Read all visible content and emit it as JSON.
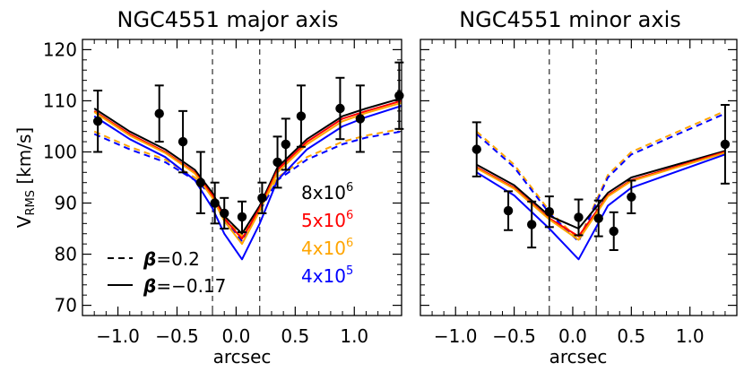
{
  "chart_data": [
    {
      "type": "line",
      "title": "NGC4551 major axis",
      "xlabel": "arcsec",
      "ylabel": "V",
      "ylabel_sub": "RMS",
      "ylabel_unit": " [km/s]",
      "xlim": [
        -1.3,
        1.4
      ],
      "ylim": [
        68,
        122
      ],
      "xticks": [
        -1.0,
        -0.5,
        0.0,
        0.5,
        1.0
      ],
      "xtick_labels": [
        "−1.0",
        "−0.5",
        "0.0",
        "0.5",
        "1.0"
      ],
      "yticks": [
        70,
        80,
        90,
        100,
        110,
        120
      ],
      "ytick_labels": [
        "70",
        "80",
        "90",
        "100",
        "110",
        "120"
      ],
      "vlines": [
        -0.2,
        0.2
      ],
      "data_points": [
        {
          "x": -1.17,
          "y": 106,
          "err": 6
        },
        {
          "x": -0.65,
          "y": 107.5,
          "err": 5.5
        },
        {
          "x": -0.45,
          "y": 102,
          "err": 6
        },
        {
          "x": -0.3,
          "y": 94,
          "err": 6
        },
        {
          "x": -0.18,
          "y": 90,
          "err": 4
        },
        {
          "x": -0.1,
          "y": 88,
          "err": 3
        },
        {
          "x": 0.05,
          "y": 87.3,
          "err": 3
        },
        {
          "x": 0.22,
          "y": 91,
          "err": 3
        },
        {
          "x": 0.35,
          "y": 98,
          "err": 5
        },
        {
          "x": 0.42,
          "y": 101.5,
          "err": 5
        },
        {
          "x": 0.55,
          "y": 107,
          "err": 6
        },
        {
          "x": 0.88,
          "y": 108.5,
          "err": 6
        },
        {
          "x": 1.05,
          "y": 106.5,
          "err": 6.5
        },
        {
          "x": 1.38,
          "y": 111,
          "err": 6.5
        }
      ],
      "x": [
        -1.2,
        -0.9,
        -0.6,
        -0.35,
        -0.2,
        -0.1,
        0.05,
        0.2,
        0.35,
        0.6,
        0.9,
        1.1,
        1.4
      ],
      "series": [
        {
          "name": "β=0.2, 4x10^6",
          "style": "dashed",
          "color": "#FFA500",
          "values": [
            104,
            101,
            98.5,
            95,
            92,
            87.5,
            83.5,
            89,
            95,
            99,
            102,
            103.2,
            104.5
          ]
        },
        {
          "name": "β=0.2, 4x10^5",
          "style": "dashed",
          "color": "#0000FF",
          "values": [
            103.5,
            100.5,
            98,
            94.5,
            91.5,
            87,
            82.5,
            88.5,
            94.5,
            98.5,
            101.5,
            102.8,
            104
          ]
        },
        {
          "name": "β=-0.17, 8x10^6",
          "style": "solid",
          "color": "#000000",
          "values": [
            108.5,
            104,
            100.5,
            96.5,
            92,
            87.5,
            84,
            89.5,
            97,
            102.5,
            107,
            108.5,
            110.5
          ]
        },
        {
          "name": "β=-0.17, 5x10^6",
          "style": "solid",
          "color": "#FF0000",
          "values": [
            108,
            103.5,
            100,
            96,
            91.5,
            87,
            83,
            89,
            96.5,
            102,
            106.5,
            108,
            110
          ]
        },
        {
          "name": "β=-0.17, 4x10^6",
          "style": "solid",
          "color": "#FFA500",
          "values": [
            107.8,
            103.2,
            99.8,
            95.8,
            91,
            86.5,
            82,
            88.5,
            96,
            101.5,
            106,
            107.6,
            109.6
          ]
        },
        {
          "name": "β=-0.17, 4x10^5",
          "style": "solid",
          "color": "#0000FF",
          "values": [
            107,
            102.5,
            99,
            94.5,
            89,
            84,
            79,
            86,
            94.5,
            100.5,
            105,
            106.8,
            109
          ]
        }
      ],
      "legend": [
        {
          "style": "dashed",
          "prefix": "β",
          "text": "=0.2"
        },
        {
          "style": "solid",
          "prefix": "β",
          "text": "=−0.17"
        }
      ],
      "mass_labels": [
        {
          "base": "8x10",
          "exp": "6",
          "color": "#000000"
        },
        {
          "base": "5x10",
          "exp": "6",
          "color": "#FF0000"
        },
        {
          "base": "4x10",
          "exp": "6",
          "color": "#FFA500"
        },
        {
          "base": "4x10",
          "exp": "5",
          "color": "#0000FF"
        }
      ]
    },
    {
      "type": "line",
      "title": "NGC4551 minor axis",
      "xlabel": "arcsec",
      "xlim": [
        -1.3,
        1.4
      ],
      "ylim": [
        68,
        122
      ],
      "xticks": [
        -1.0,
        -0.5,
        0.0,
        0.5,
        1.0
      ],
      "xtick_labels": [
        "−1.0",
        "−0.5",
        "0.0",
        "0.5",
        "1.0"
      ],
      "yticks": [
        70,
        80,
        90,
        100,
        110,
        120
      ],
      "vlines": [
        -0.2,
        0.2
      ],
      "data_points": [
        {
          "x": -0.82,
          "y": 100.5,
          "err": 5.3
        },
        {
          "x": -0.55,
          "y": 88.5,
          "err": 3.8
        },
        {
          "x": -0.35,
          "y": 85.8,
          "err": 4.5
        },
        {
          "x": -0.2,
          "y": 88.3,
          "err": 3
        },
        {
          "x": 0.05,
          "y": 87.2,
          "err": 3.5
        },
        {
          "x": 0.22,
          "y": 87,
          "err": 3.5
        },
        {
          "x": 0.35,
          "y": 84.5,
          "err": 3.7
        },
        {
          "x": 0.5,
          "y": 91.2,
          "err": 3.2
        },
        {
          "x": 1.3,
          "y": 101.5,
          "err": 7.7
        }
      ],
      "x": [
        -0.82,
        -0.5,
        -0.2,
        0.05,
        0.3,
        0.5,
        1.3
      ],
      "series": [
        {
          "name": "β=0.2, 4x10^6",
          "style": "dashed",
          "color": "#FFA500",
          "values": [
            104,
            97.5,
            88.5,
            82.8,
            95.5,
            100,
            108
          ]
        },
        {
          "name": "β=0.2, 4x10^5",
          "style": "dashed",
          "color": "#0000FF",
          "values": [
            103.5,
            97,
            88,
            82.5,
            95,
            99.5,
            107.5
          ]
        },
        {
          "name": "β=-0.17, 8x10^6",
          "style": "solid",
          "color": "#000000",
          "values": [
            97.5,
            93.5,
            87.5,
            85,
            92,
            95,
            100.2
          ]
        },
        {
          "name": "β=-0.17, 5x10^6",
          "style": "solid",
          "color": "#FF0000",
          "values": [
            97,
            93,
            87,
            83.5,
            91.5,
            94.5,
            100
          ]
        },
        {
          "name": "β=-0.17, 4x10^6",
          "style": "solid",
          "color": "#FFA500",
          "values": [
            96.8,
            92.8,
            86.8,
            82.8,
            91.3,
            94.3,
            99.8
          ]
        },
        {
          "name": "β=-0.17, 4x10^5",
          "style": "solid",
          "color": "#0000FF",
          "values": [
            96,
            91.5,
            85,
            79,
            89.5,
            93,
            99.5
          ]
        }
      ]
    }
  ]
}
